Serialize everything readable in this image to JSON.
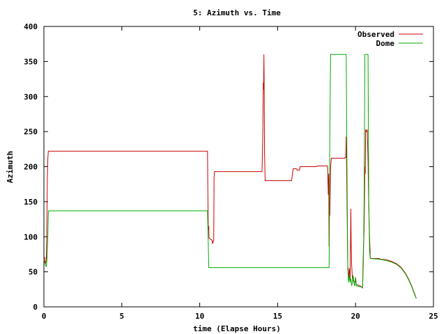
{
  "chart_data": {
    "type": "line",
    "title": "5: Azimuth vs. Time",
    "xlabel": "time (Elapse Hours)",
    "ylabel": "Azimuth",
    "xlim": [
      0,
      25
    ],
    "ylim": [
      0,
      400
    ],
    "xticks": [
      0,
      5,
      10,
      15,
      20,
      25
    ],
    "yticks": [
      0,
      50,
      100,
      150,
      200,
      250,
      300,
      350,
      400
    ],
    "grid": false,
    "legend_position": "top-right",
    "series": [
      {
        "name": "Observed",
        "color": "#cc0000",
        "points": [
          [
            0.0,
            68
          ],
          [
            0.05,
            70
          ],
          [
            0.1,
            62
          ],
          [
            0.15,
            65
          ],
          [
            0.2,
            130
          ],
          [
            0.22,
            180
          ],
          [
            0.25,
            210
          ],
          [
            0.28,
            222
          ],
          [
            10.5,
            222
          ],
          [
            10.52,
            170
          ],
          [
            10.55,
            110
          ],
          [
            10.58,
            115
          ],
          [
            10.6,
            98
          ],
          [
            10.8,
            95
          ],
          [
            10.82,
            90
          ],
          [
            10.9,
            95
          ],
          [
            10.92,
            185
          ],
          [
            10.95,
            193
          ],
          [
            14.0,
            193
          ],
          [
            14.05,
            250
          ],
          [
            14.08,
            320
          ],
          [
            14.1,
            310
          ],
          [
            14.12,
            360
          ],
          [
            14.14,
            300
          ],
          [
            14.16,
            220
          ],
          [
            14.2,
            180
          ],
          [
            15.9,
            180
          ],
          [
            15.95,
            190
          ],
          [
            16.0,
            197
          ],
          [
            16.2,
            197
          ],
          [
            16.25,
            195
          ],
          [
            16.4,
            195
          ],
          [
            16.45,
            200
          ],
          [
            17.5,
            200
          ],
          [
            17.55,
            201
          ],
          [
            18.2,
            201
          ],
          [
            18.25,
            160
          ],
          [
            18.28,
            190
          ],
          [
            18.3,
            86
          ],
          [
            18.32,
            150
          ],
          [
            18.35,
            130
          ],
          [
            18.4,
            200
          ],
          [
            18.45,
            212
          ],
          [
            19.3,
            212
          ],
          [
            19.32,
            213
          ],
          [
            19.38,
            213
          ],
          [
            19.4,
            243
          ],
          [
            19.42,
            213
          ],
          [
            19.45,
            150
          ],
          [
            19.5,
            60
          ],
          [
            19.55,
            40
          ],
          [
            19.6,
            55
          ],
          [
            19.65,
            38
          ],
          [
            19.7,
            140
          ],
          [
            19.72,
            90
          ],
          [
            19.75,
            60
          ],
          [
            19.8,
            40
          ],
          [
            19.85,
            37
          ],
          [
            19.95,
            35
          ],
          [
            20.0,
            42
          ],
          [
            20.05,
            32
          ],
          [
            20.3,
            30
          ],
          [
            20.45,
            27
          ],
          [
            20.5,
            80
          ],
          [
            20.55,
            110
          ],
          [
            20.6,
            200
          ],
          [
            20.62,
            190
          ],
          [
            20.65,
            253
          ],
          [
            20.7,
            250
          ],
          [
            20.75,
            252
          ],
          [
            20.8,
            210
          ],
          [
            20.85,
            140
          ],
          [
            20.9,
            100
          ],
          [
            20.95,
            70
          ],
          [
            21.0,
            69
          ],
          [
            21.5,
            69
          ],
          [
            21.6,
            68
          ],
          [
            22.0,
            67
          ],
          [
            22.3,
            65
          ],
          [
            22.6,
            62
          ],
          [
            22.9,
            57
          ],
          [
            23.2,
            48
          ],
          [
            23.4,
            40
          ],
          [
            23.6,
            30
          ],
          [
            23.8,
            18
          ],
          [
            23.9,
            12
          ]
        ]
      },
      {
        "name": "Dome",
        "color": "#00aa00",
        "points": [
          [
            0.0,
            68
          ],
          [
            0.1,
            60
          ],
          [
            0.15,
            57
          ],
          [
            0.2,
            70
          ],
          [
            0.25,
            100
          ],
          [
            0.28,
            130
          ],
          [
            0.3,
            137
          ],
          [
            10.5,
            137
          ],
          [
            10.55,
            90
          ],
          [
            10.58,
            56
          ],
          [
            18.3,
            56
          ],
          [
            18.32,
            100
          ],
          [
            18.35,
            250
          ],
          [
            18.4,
            360
          ],
          [
            19.4,
            360
          ],
          [
            19.45,
            200
          ],
          [
            19.5,
            60
          ],
          [
            19.55,
            35
          ],
          [
            19.6,
            45
          ],
          [
            19.65,
            35
          ],
          [
            19.7,
            40
          ],
          [
            19.75,
            30
          ],
          [
            19.8,
            35
          ],
          [
            19.85,
            45
          ],
          [
            19.9,
            33
          ],
          [
            19.95,
            30
          ],
          [
            20.0,
            42
          ],
          [
            20.05,
            30
          ],
          [
            20.45,
            28
          ],
          [
            20.5,
            60
          ],
          [
            20.55,
            150
          ],
          [
            20.6,
            360
          ],
          [
            20.8,
            360
          ],
          [
            20.85,
            150
          ],
          [
            20.9,
            80
          ],
          [
            20.95,
            69
          ],
          [
            21.5,
            68
          ],
          [
            22.0,
            66
          ],
          [
            22.3,
            64
          ],
          [
            22.6,
            61
          ],
          [
            22.9,
            56
          ],
          [
            23.2,
            47
          ],
          [
            23.4,
            39
          ],
          [
            23.6,
            29
          ],
          [
            23.8,
            17
          ],
          [
            23.9,
            12
          ]
        ]
      }
    ]
  }
}
